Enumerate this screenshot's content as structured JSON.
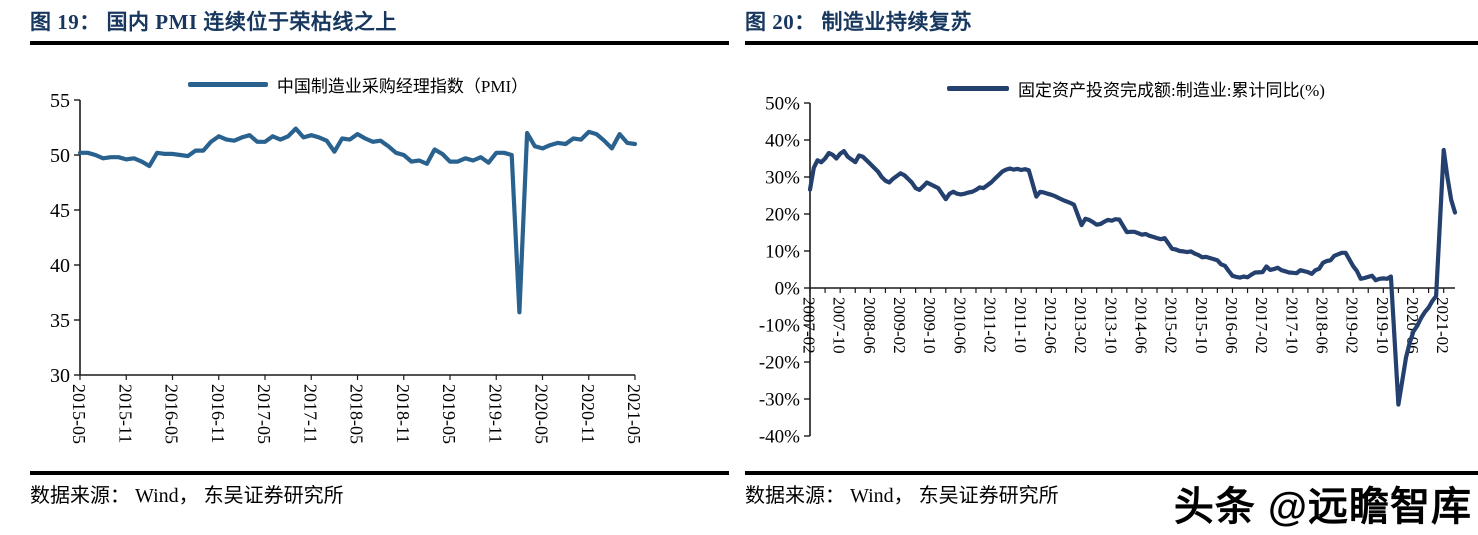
{
  "colors": {
    "title": "#17375E",
    "axis": "#1a1a1a",
    "rule": "#000000"
  },
  "footer": {
    "source_left": "数据来源： Wind， 东吴证券研究所",
    "source_right": "数据来源： Wind， 东吴证券研究所",
    "watermark": "头条 @远瞻智库"
  },
  "chart_data": [
    {
      "type": "line",
      "title": "图 19： 国内 PMI 连续位于荣枯线之上",
      "legend": "中国制造业采购经理指数（PMI）",
      "color": "#2A628F",
      "ylim": [
        30,
        55
      ],
      "grid": false,
      "legend_position": "top-center",
      "ytick_labels": [
        "55",
        "50",
        "45",
        "40",
        "35",
        "30"
      ],
      "xtick_labels": [
        "2015-05",
        "2015-11",
        "2016-05",
        "2016-11",
        "2017-05",
        "2017-11",
        "2018-05",
        "2018-11",
        "2019-05",
        "2019-11",
        "2020-05",
        "2020-11",
        "2021-05"
      ],
      "points": [
        [
          "2015-05",
          50.2
        ],
        [
          "2015-06",
          50.2
        ],
        [
          "2015-07",
          50.0
        ],
        [
          "2015-08",
          49.7
        ],
        [
          "2015-09",
          49.8
        ],
        [
          "2015-10",
          49.8
        ],
        [
          "2015-11",
          49.6
        ],
        [
          "2015-12",
          49.7
        ],
        [
          "2016-01",
          49.4
        ],
        [
          "2016-02",
          49.0
        ],
        [
          "2016-03",
          50.2
        ],
        [
          "2016-04",
          50.1
        ],
        [
          "2016-05",
          50.1
        ],
        [
          "2016-06",
          50.0
        ],
        [
          "2016-07",
          49.9
        ],
        [
          "2016-08",
          50.4
        ],
        [
          "2016-09",
          50.4
        ],
        [
          "2016-10",
          51.2
        ],
        [
          "2016-11",
          51.7
        ],
        [
          "2016-12",
          51.4
        ],
        [
          "2017-01",
          51.3
        ],
        [
          "2017-02",
          51.6
        ],
        [
          "2017-03",
          51.8
        ],
        [
          "2017-04",
          51.2
        ],
        [
          "2017-05",
          51.2
        ],
        [
          "2017-06",
          51.7
        ],
        [
          "2017-07",
          51.4
        ],
        [
          "2017-08",
          51.7
        ],
        [
          "2017-09",
          52.4
        ],
        [
          "2017-10",
          51.6
        ],
        [
          "2017-11",
          51.8
        ],
        [
          "2017-12",
          51.6
        ],
        [
          "2018-01",
          51.3
        ],
        [
          "2018-02",
          50.3
        ],
        [
          "2018-03",
          51.5
        ],
        [
          "2018-04",
          51.4
        ],
        [
          "2018-05",
          51.9
        ],
        [
          "2018-06",
          51.5
        ],
        [
          "2018-07",
          51.2
        ],
        [
          "2018-08",
          51.3
        ],
        [
          "2018-09",
          50.8
        ],
        [
          "2018-10",
          50.2
        ],
        [
          "2018-11",
          50.0
        ],
        [
          "2018-12",
          49.4
        ],
        [
          "2019-01",
          49.5
        ],
        [
          "2019-02",
          49.2
        ],
        [
          "2019-03",
          50.5
        ],
        [
          "2019-04",
          50.1
        ],
        [
          "2019-05",
          49.4
        ],
        [
          "2019-06",
          49.4
        ],
        [
          "2019-07",
          49.7
        ],
        [
          "2019-08",
          49.5
        ],
        [
          "2019-09",
          49.8
        ],
        [
          "2019-10",
          49.3
        ],
        [
          "2019-11",
          50.2
        ],
        [
          "2019-12",
          50.2
        ],
        [
          "2020-01",
          50.0
        ],
        [
          "2020-02",
          35.7
        ],
        [
          "2020-03",
          52.0
        ],
        [
          "2020-04",
          50.8
        ],
        [
          "2020-05",
          50.6
        ],
        [
          "2020-06",
          50.9
        ],
        [
          "2020-07",
          51.1
        ],
        [
          "2020-08",
          51.0
        ],
        [
          "2020-09",
          51.5
        ],
        [
          "2020-10",
          51.4
        ],
        [
          "2020-11",
          52.1
        ],
        [
          "2020-12",
          51.9
        ],
        [
          "2021-01",
          51.3
        ],
        [
          "2021-02",
          50.6
        ],
        [
          "2021-03",
          51.9
        ],
        [
          "2021-04",
          51.1
        ],
        [
          "2021-05",
          51.0
        ]
      ]
    },
    {
      "type": "line",
      "title": "图 20： 制造业持续复苏",
      "legend": "固定资产投资完成额:制造业:累计同比(%)",
      "color": "#24406E",
      "ylim": [
        -40,
        50
      ],
      "grid": false,
      "legend_position": "top-center",
      "x_axis_at": 0,
      "minor_xtick_months": 4,
      "ytick_labels": [
        "50%",
        "40%",
        "30%",
        "20%",
        "10%",
        "0%",
        "-10%",
        "-20%",
        "-30%",
        "-40%"
      ],
      "xtick_labels": [
        "2007-02",
        "2007-10",
        "2008-06",
        "2009-02",
        "2009-10",
        "2010-06",
        "2011-02",
        "2011-10",
        "2012-06",
        "2013-02",
        "2013-10",
        "2014-06",
        "2015-02",
        "2015-10",
        "2016-06",
        "2017-02",
        "2017-10",
        "2018-06",
        "2019-02",
        "2019-10",
        "2020-06",
        "2021-02"
      ],
      "points": [
        [
          "2007-02",
          26.6
        ],
        [
          "2007-03",
          32.5
        ],
        [
          "2007-04",
          34.5
        ],
        [
          "2007-05",
          34.0
        ],
        [
          "2007-06",
          35.0
        ],
        [
          "2007-07",
          36.5
        ],
        [
          "2007-08",
          36.0
        ],
        [
          "2007-09",
          35.0
        ],
        [
          "2007-10",
          36.3
        ],
        [
          "2007-11",
          37.0
        ],
        [
          "2007-12",
          35.5
        ],
        [
          "2008-02",
          34.0
        ],
        [
          "2008-03",
          35.8
        ],
        [
          "2008-04",
          35.5
        ],
        [
          "2008-05",
          34.5
        ],
        [
          "2008-06",
          33.5
        ],
        [
          "2008-07",
          32.5
        ],
        [
          "2008-08",
          31.5
        ],
        [
          "2008-09",
          30.0
        ],
        [
          "2008-10",
          29.0
        ],
        [
          "2008-11",
          28.5
        ],
        [
          "2008-12",
          29.5
        ],
        [
          "2009-02",
          31.0
        ],
        [
          "2009-03",
          30.5
        ],
        [
          "2009-04",
          29.5
        ],
        [
          "2009-05",
          28.5
        ],
        [
          "2009-06",
          27.0
        ],
        [
          "2009-07",
          26.5
        ],
        [
          "2009-08",
          27.5
        ],
        [
          "2009-09",
          28.5
        ],
        [
          "2009-10",
          28.0
        ],
        [
          "2009-11",
          27.5
        ],
        [
          "2009-12",
          27.0
        ],
        [
          "2010-02",
          24.0
        ],
        [
          "2010-03",
          25.5
        ],
        [
          "2010-04",
          26.0
        ],
        [
          "2010-05",
          25.5
        ],
        [
          "2010-06",
          25.3
        ],
        [
          "2010-07",
          25.5
        ],
        [
          "2010-08",
          25.8
        ],
        [
          "2010-09",
          26.0
        ],
        [
          "2010-10",
          26.5
        ],
        [
          "2010-11",
          27.2
        ],
        [
          "2010-12",
          27.0
        ],
        [
          "2011-02",
          28.5
        ],
        [
          "2011-03",
          29.5
        ],
        [
          "2011-04",
          30.5
        ],
        [
          "2011-05",
          31.5
        ],
        [
          "2011-06",
          32.0
        ],
        [
          "2011-07",
          32.3
        ],
        [
          "2011-08",
          32.0
        ],
        [
          "2011-09",
          32.2
        ],
        [
          "2011-10",
          31.9
        ],
        [
          "2011-11",
          32.1
        ],
        [
          "2011-12",
          31.8
        ],
        [
          "2012-02",
          24.7
        ],
        [
          "2012-03",
          26.0
        ],
        [
          "2012-04",
          25.8
        ],
        [
          "2012-05",
          25.5
        ],
        [
          "2012-06",
          25.2
        ],
        [
          "2012-07",
          24.8
        ],
        [
          "2012-08",
          24.3
        ],
        [
          "2012-09",
          23.8
        ],
        [
          "2012-10",
          23.4
        ],
        [
          "2012-11",
          23.0
        ],
        [
          "2012-12",
          22.5
        ],
        [
          "2013-02",
          17.0
        ],
        [
          "2013-03",
          18.7
        ],
        [
          "2013-04",
          18.4
        ],
        [
          "2013-05",
          17.8
        ],
        [
          "2013-06",
          17.1
        ],
        [
          "2013-07",
          17.3
        ],
        [
          "2013-08",
          17.9
        ],
        [
          "2013-09",
          18.4
        ],
        [
          "2013-10",
          18.2
        ],
        [
          "2013-11",
          18.6
        ],
        [
          "2013-12",
          18.5
        ],
        [
          "2014-02",
          15.1
        ],
        [
          "2014-03",
          15.2
        ],
        [
          "2014-04",
          15.2
        ],
        [
          "2014-05",
          14.8
        ],
        [
          "2014-06",
          14.4
        ],
        [
          "2014-07",
          14.6
        ],
        [
          "2014-08",
          14.1
        ],
        [
          "2014-09",
          13.8
        ],
        [
          "2014-10",
          13.5
        ],
        [
          "2014-11",
          13.2
        ],
        [
          "2014-12",
          13.5
        ],
        [
          "2015-02",
          10.6
        ],
        [
          "2015-03",
          10.4
        ],
        [
          "2015-04",
          10.0
        ],
        [
          "2015-05",
          9.9
        ],
        [
          "2015-06",
          9.7
        ],
        [
          "2015-07",
          9.9
        ],
        [
          "2015-08",
          9.3
        ],
        [
          "2015-09",
          8.9
        ],
        [
          "2015-10",
          8.3
        ],
        [
          "2015-11",
          8.4
        ],
        [
          "2015-12",
          8.1
        ],
        [
          "2016-02",
          7.5
        ],
        [
          "2016-03",
          6.4
        ],
        [
          "2016-04",
          6.0
        ],
        [
          "2016-05",
          4.6
        ],
        [
          "2016-06",
          3.3
        ],
        [
          "2016-07",
          3.0
        ],
        [
          "2016-08",
          2.8
        ],
        [
          "2016-09",
          3.1
        ],
        [
          "2016-10",
          2.9
        ],
        [
          "2016-11",
          3.6
        ],
        [
          "2016-12",
          4.2
        ],
        [
          "2017-02",
          4.3
        ],
        [
          "2017-03",
          5.8
        ],
        [
          "2017-04",
          4.9
        ],
        [
          "2017-05",
          5.1
        ],
        [
          "2017-06",
          5.5
        ],
        [
          "2017-07",
          4.8
        ],
        [
          "2017-08",
          4.5
        ],
        [
          "2017-09",
          4.2
        ],
        [
          "2017-10",
          4.1
        ],
        [
          "2017-11",
          4.0
        ],
        [
          "2017-12",
          4.8
        ],
        [
          "2018-02",
          4.3
        ],
        [
          "2018-03",
          3.8
        ],
        [
          "2018-04",
          4.8
        ],
        [
          "2018-05",
          5.2
        ],
        [
          "2018-06",
          6.8
        ],
        [
          "2018-07",
          7.3
        ],
        [
          "2018-08",
          7.5
        ],
        [
          "2018-09",
          8.7
        ],
        [
          "2018-10",
          9.1
        ],
        [
          "2018-11",
          9.5
        ],
        [
          "2018-12",
          9.5
        ],
        [
          "2019-02",
          5.9
        ],
        [
          "2019-03",
          4.6
        ],
        [
          "2019-04",
          2.5
        ],
        [
          "2019-05",
          2.7
        ],
        [
          "2019-06",
          3.0
        ],
        [
          "2019-07",
          3.3
        ],
        [
          "2019-08",
          2.1
        ],
        [
          "2019-09",
          2.5
        ],
        [
          "2019-10",
          2.6
        ],
        [
          "2019-11",
          2.5
        ],
        [
          "2019-12",
          3.1
        ],
        [
          "2020-02",
          -31.5
        ],
        [
          "2020-03",
          -25.2
        ],
        [
          "2020-04",
          -18.8
        ],
        [
          "2020-05",
          -14.8
        ],
        [
          "2020-06",
          -11.7
        ],
        [
          "2020-07",
          -10.2
        ],
        [
          "2020-08",
          -8.1
        ],
        [
          "2020-09",
          -6.5
        ],
        [
          "2020-10",
          -5.3
        ],
        [
          "2020-11",
          -3.5
        ],
        [
          "2020-12",
          -2.2
        ],
        [
          "2021-02",
          37.3
        ],
        [
          "2021-03",
          29.8
        ],
        [
          "2021-04",
          23.8
        ],
        [
          "2021-05",
          20.4
        ]
      ]
    }
  ]
}
